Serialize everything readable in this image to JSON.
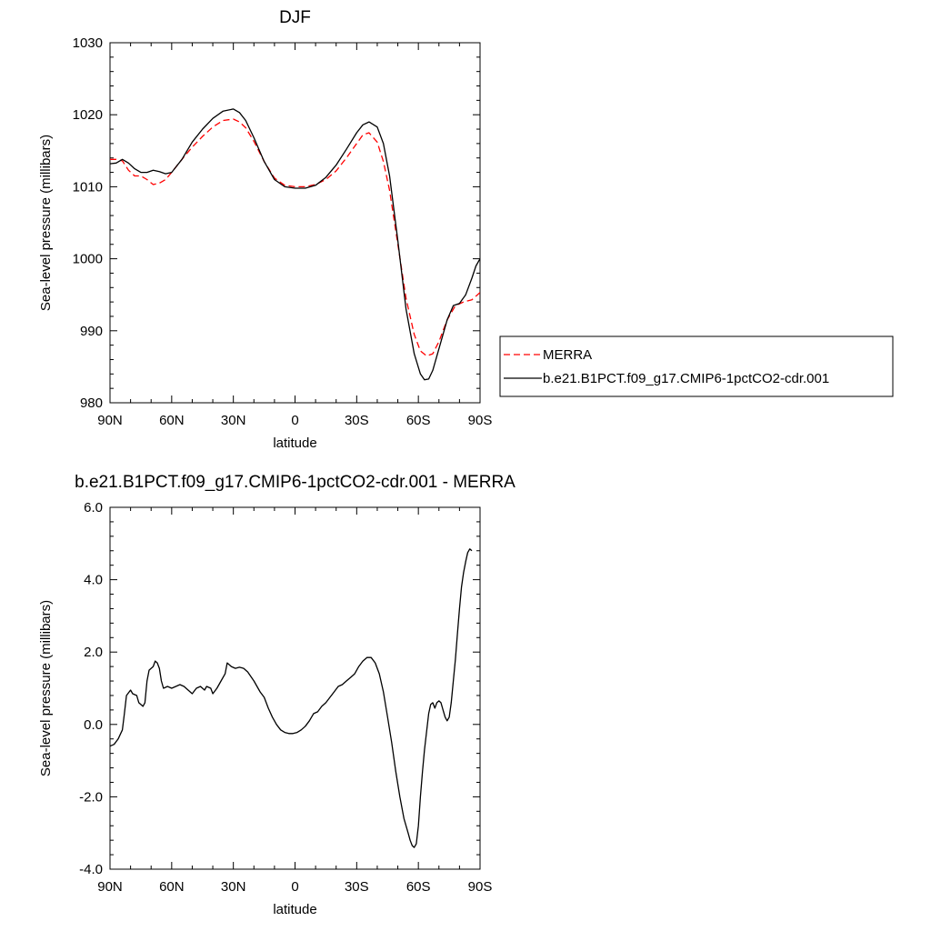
{
  "chart_data": [
    {
      "type": "line",
      "title": "DJF",
      "xlabel": "latitude",
      "ylabel": "Sea-level pressure (millibars)",
      "xlim": [
        90,
        -90
      ],
      "ylim": [
        980,
        1030
      ],
      "xticks": [
        {
          "value": 90,
          "label": "90N"
        },
        {
          "value": 60,
          "label": "60N"
        },
        {
          "value": 30,
          "label": "30N"
        },
        {
          "value": 0,
          "label": "0"
        },
        {
          "value": -30,
          "label": "30S"
        },
        {
          "value": -60,
          "label": "60S"
        },
        {
          "value": -90,
          "label": "90S"
        }
      ],
      "yticks": [
        {
          "value": 980,
          "label": "980"
        },
        {
          "value": 990,
          "label": "990"
        },
        {
          "value": 1000,
          "label": "1000"
        },
        {
          "value": 1010,
          "label": "1010"
        },
        {
          "value": 1020,
          "label": "1020"
        },
        {
          "value": 1030,
          "label": "1030"
        }
      ],
      "grid": false,
      "legend_position": "right",
      "series": [
        {
          "name": "MERRA",
          "color": "#ff0000",
          "style": "dashed",
          "points": [
            [
              90,
              1013.8
            ],
            [
              87,
              1013.8
            ],
            [
              84,
              1013.6
            ],
            [
              81,
              1012.3
            ],
            [
              78,
              1011.5
            ],
            [
              75,
              1011.5
            ],
            [
              72,
              1011.0
            ],
            [
              69,
              1010.3
            ],
            [
              66,
              1010.5
            ],
            [
              63,
              1011.0
            ],
            [
              60,
              1012.0
            ],
            [
              55,
              1013.8
            ],
            [
              50,
              1015.5
            ],
            [
              45,
              1017.0
            ],
            [
              40,
              1018.3
            ],
            [
              35,
              1019.2
            ],
            [
              30,
              1019.4
            ],
            [
              27,
              1019.0
            ],
            [
              24,
              1018.2
            ],
            [
              20,
              1016.3
            ],
            [
              15,
              1013.5
            ],
            [
              10,
              1011.2
            ],
            [
              5,
              1010.2
            ],
            [
              0,
              1010.0
            ],
            [
              -5,
              1010.0
            ],
            [
              -10,
              1010.3
            ],
            [
              -15,
              1011.0
            ],
            [
              -20,
              1012.2
            ],
            [
              -25,
              1014.0
            ],
            [
              -30,
              1016.0
            ],
            [
              -33,
              1017.2
            ],
            [
              -36,
              1017.5
            ],
            [
              -40,
              1016.2
            ],
            [
              -43,
              1013.5
            ],
            [
              -46,
              1009.5
            ],
            [
              -50,
              1002.0
            ],
            [
              -54,
              994.5
            ],
            [
              -58,
              989.5
            ],
            [
              -61,
              987.2
            ],
            [
              -64,
              986.5
            ],
            [
              -67,
              986.8
            ],
            [
              -70,
              988.5
            ],
            [
              -74,
              991.5
            ],
            [
              -78,
              993.5
            ],
            [
              -82,
              994.0
            ],
            [
              -86,
              994.3
            ],
            [
              -90,
              995.3
            ]
          ]
        },
        {
          "name": "b.e21.B1PCT.f09_g17.CMIP6-1pctCO2-cdr.001",
          "color": "#000000",
          "style": "solid",
          "points": [
            [
              90,
              1013.2
            ],
            [
              87,
              1013.3
            ],
            [
              84,
              1013.8
            ],
            [
              81,
              1013.3
            ],
            [
              78,
              1012.5
            ],
            [
              75,
              1012.0
            ],
            [
              72,
              1012.0
            ],
            [
              69,
              1012.3
            ],
            [
              66,
              1012.1
            ],
            [
              63,
              1011.8
            ],
            [
              60,
              1012.0
            ],
            [
              55,
              1013.8
            ],
            [
              50,
              1016.2
            ],
            [
              45,
              1018.0
            ],
            [
              40,
              1019.5
            ],
            [
              35,
              1020.5
            ],
            [
              30,
              1020.8
            ],
            [
              27,
              1020.3
            ],
            [
              24,
              1019.2
            ],
            [
              20,
              1016.8
            ],
            [
              15,
              1013.5
            ],
            [
              10,
              1011.0
            ],
            [
              5,
              1010.0
            ],
            [
              0,
              1009.8
            ],
            [
              -5,
              1009.8
            ],
            [
              -10,
              1010.2
            ],
            [
              -15,
              1011.3
            ],
            [
              -20,
              1013.0
            ],
            [
              -25,
              1015.2
            ],
            [
              -30,
              1017.5
            ],
            [
              -33,
              1018.6
            ],
            [
              -36,
              1019.0
            ],
            [
              -40,
              1018.3
            ],
            [
              -43,
              1016.0
            ],
            [
              -46,
              1011.5
            ],
            [
              -50,
              1002.5
            ],
            [
              -54,
              993.0
            ],
            [
              -58,
              986.8
            ],
            [
              -61,
              984.0
            ],
            [
              -63,
              983.2
            ],
            [
              -65,
              983.3
            ],
            [
              -67,
              984.5
            ],
            [
              -70,
              987.5
            ],
            [
              -74,
              991.5
            ],
            [
              -77,
              993.5
            ],
            [
              -80,
              993.8
            ],
            [
              -83,
              995.0
            ],
            [
              -86,
              997.3
            ],
            [
              -88,
              999.0
            ],
            [
              -90,
              1000.0
            ]
          ]
        }
      ]
    },
    {
      "type": "line",
      "title": "b.e21.B1PCT.f09_g17.CMIP6-1pctCO2-cdr.001 - MERRA",
      "xlabel": "latitude",
      "ylabel": "Sea-level pressure (millibars)",
      "xlim": [
        90,
        -90
      ],
      "ylim": [
        -4.0,
        6.0
      ],
      "xticks": [
        {
          "value": 90,
          "label": "90N"
        },
        {
          "value": 60,
          "label": "60N"
        },
        {
          "value": 30,
          "label": "30N"
        },
        {
          "value": 0,
          "label": "0"
        },
        {
          "value": -30,
          "label": "30S"
        },
        {
          "value": -60,
          "label": "60S"
        },
        {
          "value": -90,
          "label": "90S"
        }
      ],
      "yticks": [
        {
          "value": -4.0,
          "label": "-4.0"
        },
        {
          "value": -2.0,
          "label": "-2.0"
        },
        {
          "value": 0.0,
          "label": "0.0"
        },
        {
          "value": 2.0,
          "label": "2.0"
        },
        {
          "value": 4.0,
          "label": "4.0"
        },
        {
          "value": 6.0,
          "label": "6.0"
        }
      ],
      "grid": false,
      "series": [
        {
          "color": "#000000",
          "style": "solid",
          "points": [
            [
              90,
              -0.6
            ],
            [
              88,
              -0.55
            ],
            [
              86,
              -0.4
            ],
            [
              84,
              -0.15
            ],
            [
              83,
              0.3
            ],
            [
              82,
              0.8
            ],
            [
              80,
              0.95
            ],
            [
              79,
              0.85
            ],
            [
              77,
              0.8
            ],
            [
              76,
              0.6
            ],
            [
              74,
              0.5
            ],
            [
              73,
              0.6
            ],
            [
              72,
              1.2
            ],
            [
              71,
              1.5
            ],
            [
              69,
              1.6
            ],
            [
              68,
              1.75
            ],
            [
              67,
              1.7
            ],
            [
              66,
              1.55
            ],
            [
              65,
              1.2
            ],
            [
              64,
              1.0
            ],
            [
              62,
              1.05
            ],
            [
              60,
              1.0
            ],
            [
              58,
              1.05
            ],
            [
              56,
              1.1
            ],
            [
              54,
              1.05
            ],
            [
              52,
              0.95
            ],
            [
              50,
              0.85
            ],
            [
              48,
              1.0
            ],
            [
              46,
              1.05
            ],
            [
              44,
              0.95
            ],
            [
              43,
              1.05
            ],
            [
              41,
              1.0
            ],
            [
              40,
              0.85
            ],
            [
              38,
              1.0
            ],
            [
              36,
              1.2
            ],
            [
              34,
              1.4
            ],
            [
              33,
              1.7
            ],
            [
              31,
              1.6
            ],
            [
              29,
              1.55
            ],
            [
              27,
              1.58
            ],
            [
              25,
              1.55
            ],
            [
              23,
              1.45
            ],
            [
              20,
              1.2
            ],
            [
              17,
              0.9
            ],
            [
              15,
              0.75
            ],
            [
              13,
              0.45
            ],
            [
              11,
              0.2
            ],
            [
              9,
              0.0
            ],
            [
              7,
              -0.15
            ],
            [
              5,
              -0.22
            ],
            [
              3,
              -0.25
            ],
            [
              1,
              -0.25
            ],
            [
              -1,
              -0.22
            ],
            [
              -3,
              -0.15
            ],
            [
              -5,
              -0.05
            ],
            [
              -7,
              0.1
            ],
            [
              -9,
              0.3
            ],
            [
              -11,
              0.35
            ],
            [
              -13,
              0.5
            ],
            [
              -15,
              0.6
            ],
            [
              -17,
              0.75
            ],
            [
              -19,
              0.9
            ],
            [
              -21,
              1.05
            ],
            [
              -23,
              1.1
            ],
            [
              -25,
              1.2
            ],
            [
              -27,
              1.3
            ],
            [
              -29,
              1.4
            ],
            [
              -31,
              1.6
            ],
            [
              -33,
              1.75
            ],
            [
              -35,
              1.85
            ],
            [
              -37,
              1.85
            ],
            [
              -39,
              1.7
            ],
            [
              -41,
              1.4
            ],
            [
              -43,
              0.9
            ],
            [
              -45,
              0.2
            ],
            [
              -47,
              -0.5
            ],
            [
              -49,
              -1.3
            ],
            [
              -51,
              -2.0
            ],
            [
              -53,
              -2.6
            ],
            [
              -55,
              -3.0
            ],
            [
              -56,
              -3.2
            ],
            [
              -57,
              -3.35
            ],
            [
              -58,
              -3.4
            ],
            [
              -59,
              -3.3
            ],
            [
              -60,
              -2.8
            ],
            [
              -61,
              -2.0
            ],
            [
              -62,
              -1.3
            ],
            [
              -63,
              -0.7
            ],
            [
              -64,
              -0.2
            ],
            [
              -65,
              0.3
            ],
            [
              -66,
              0.55
            ],
            [
              -67,
              0.6
            ],
            [
              -68,
              0.45
            ],
            [
              -69,
              0.6
            ],
            [
              -70,
              0.65
            ],
            [
              -71,
              0.6
            ],
            [
              -72,
              0.4
            ],
            [
              -73,
              0.2
            ],
            [
              -74,
              0.1
            ],
            [
              -75,
              0.2
            ],
            [
              -76,
              0.6
            ],
            [
              -77,
              1.2
            ],
            [
              -78,
              1.8
            ],
            [
              -79,
              2.5
            ],
            [
              -80,
              3.2
            ],
            [
              -81,
              3.8
            ],
            [
              -82,
              4.2
            ],
            [
              -83,
              4.5
            ],
            [
              -84,
              4.75
            ],
            [
              -85,
              4.85
            ],
            [
              -86,
              4.8
            ]
          ]
        }
      ]
    }
  ]
}
